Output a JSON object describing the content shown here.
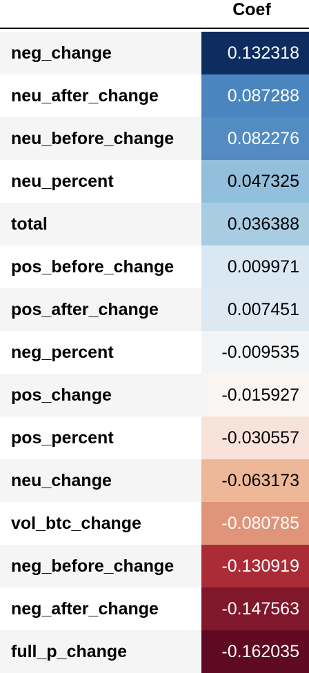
{
  "header": {
    "coef_label": "Coef"
  },
  "rows": [
    {
      "label": "neg_change",
      "value": "0.132318",
      "bg": "#0d2c5f",
      "fg": "#ffffff"
    },
    {
      "label": "neu_after_change",
      "value": "0.087288",
      "bg": "#4a85c0",
      "fg": "#ffffff"
    },
    {
      "label": "neu_before_change",
      "value": "0.082276",
      "bg": "#538bc3",
      "fg": "#ffffff"
    },
    {
      "label": "neu_percent",
      "value": "0.047325",
      "bg": "#92c0dc",
      "fg": "#000000"
    },
    {
      "label": "total",
      "value": "0.036388",
      "bg": "#a8cde3",
      "fg": "#000000"
    },
    {
      "label": "pos_before_change",
      "value": "0.009971",
      "bg": "#d9e8f2",
      "fg": "#000000"
    },
    {
      "label": "pos_after_change",
      "value": "0.007451",
      "bg": "#dde9f2",
      "fg": "#000000"
    },
    {
      "label": "neg_percent",
      "value": "-0.009535",
      "bg": "#f3f4f6",
      "fg": "#000000"
    },
    {
      "label": "pos_change",
      "value": "-0.015927",
      "bg": "#f8f5f3",
      "fg": "#000000"
    },
    {
      "label": "pos_percent",
      "value": "-0.030557",
      "bg": "#f8e3da",
      "fg": "#000000"
    },
    {
      "label": "neu_change",
      "value": "-0.063173",
      "bg": "#eeb898",
      "fg": "#000000"
    },
    {
      "label": "vol_btc_change",
      "value": "-0.080785",
      "bg": "#e0957b",
      "fg": "#ffffff"
    },
    {
      "label": "neg_before_change",
      "value": "-0.130919",
      "bg": "#ab2b37",
      "fg": "#ffffff"
    },
    {
      "label": "neg_after_change",
      "value": "-0.147563",
      "bg": "#80172a",
      "fg": "#ffffff"
    },
    {
      "label": "full_p_change",
      "value": "-0.162035",
      "bg": "#5f0a22",
      "fg": "#ffffff"
    }
  ]
}
